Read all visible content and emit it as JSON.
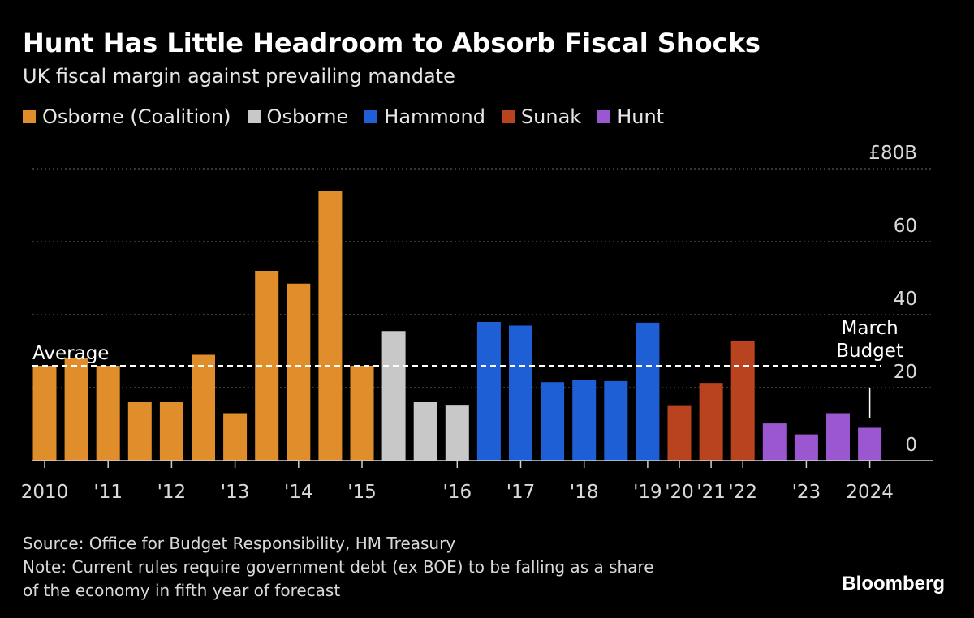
{
  "header": {
    "title": "Hunt Has Little Headroom to Absorb Fiscal Shocks",
    "subtitle": "UK fiscal margin against prevailing mandate"
  },
  "legend": [
    {
      "label": "Osborne (Coalition)",
      "color": "#e08e2b"
    },
    {
      "label": "Osborne",
      "color": "#c8c8c8"
    },
    {
      "label": "Hammond",
      "color": "#1f5fd6"
    },
    {
      "label": "Sunak",
      "color": "#b9421f"
    },
    {
      "label": "Hunt",
      "color": "#9a57d0"
    }
  ],
  "footer": {
    "source": "Source: Office for Budget Responsibility, HM Treasury",
    "note_line1": "Note: Current rules require government debt (ex BOE) to be falling as a share",
    "note_line2": "of the economy in fifth year of forecast"
  },
  "brand": "Bloomberg",
  "chart_data": {
    "type": "bar",
    "title": "Hunt Has Little Headroom to Absorb Fiscal Shocks",
    "subtitle": "UK fiscal margin against prevailing mandate",
    "ylim": [
      0,
      80
    ],
    "y_ticks": [
      {
        "value": 80,
        "label": "£80B"
      },
      {
        "value": 60,
        "label": "60"
      },
      {
        "value": 40,
        "label": "40"
      },
      {
        "value": 20,
        "label": "20"
      },
      {
        "value": 0,
        "label": "0"
      }
    ],
    "grid": true,
    "x_labels": [
      {
        "bar_index": 0,
        "label": "2010"
      },
      {
        "bar_index": 2,
        "label": "'11"
      },
      {
        "bar_index": 4,
        "label": "'12"
      },
      {
        "bar_index": 6,
        "label": "'13"
      },
      {
        "bar_index": 8,
        "label": "'14"
      },
      {
        "bar_index": 10,
        "label": "'15"
      },
      {
        "bar_index": 13,
        "label": "'16"
      },
      {
        "bar_index": 15,
        "label": "'17"
      },
      {
        "bar_index": 17,
        "label": "'18"
      },
      {
        "bar_index": 19,
        "label": "'19"
      },
      {
        "bar_index": 20,
        "label": "'20"
      },
      {
        "bar_index": 21,
        "label": "'21"
      },
      {
        "bar_index": 22,
        "label": "'22"
      },
      {
        "bar_index": 24,
        "label": "'23"
      },
      {
        "bar_index": 26,
        "label": "2024"
      }
    ],
    "bars": [
      {
        "value": 26,
        "series": "Osborne (Coalition)"
      },
      {
        "value": 28,
        "series": "Osborne (Coalition)"
      },
      {
        "value": 26,
        "series": "Osborne (Coalition)"
      },
      {
        "value": 16,
        "series": "Osborne (Coalition)"
      },
      {
        "value": 16,
        "series": "Osborne (Coalition)"
      },
      {
        "value": 29,
        "series": "Osborne (Coalition)"
      },
      {
        "value": 13,
        "series": "Osborne (Coalition)"
      },
      {
        "value": 52,
        "series": "Osborne (Coalition)"
      },
      {
        "value": 48.5,
        "series": "Osborne (Coalition)"
      },
      {
        "value": 74,
        "series": "Osborne (Coalition)"
      },
      {
        "value": 26,
        "series": "Osborne (Coalition)"
      },
      {
        "value": 35.5,
        "series": "Osborne"
      },
      {
        "value": 16,
        "series": "Osborne"
      },
      {
        "value": 15.3,
        "series": "Osborne"
      },
      {
        "value": 38,
        "series": "Hammond"
      },
      {
        "value": 37,
        "series": "Hammond"
      },
      {
        "value": 21.5,
        "series": "Hammond"
      },
      {
        "value": 22,
        "series": "Hammond"
      },
      {
        "value": 21.8,
        "series": "Hammond"
      },
      {
        "value": 37.8,
        "series": "Hammond"
      },
      {
        "value": 15.2,
        "series": "Sunak"
      },
      {
        "value": 21.3,
        "series": "Sunak"
      },
      {
        "value": 32.8,
        "series": "Sunak"
      },
      {
        "value": 10.2,
        "series": "Hunt"
      },
      {
        "value": 7.2,
        "series": "Hunt"
      },
      {
        "value": 13,
        "series": "Hunt"
      },
      {
        "value": 9
      }
    ],
    "average": {
      "label": "Average",
      "value": 26
    },
    "annotation": {
      "line1": "March",
      "line2": "Budget",
      "bar_index": 26
    }
  }
}
